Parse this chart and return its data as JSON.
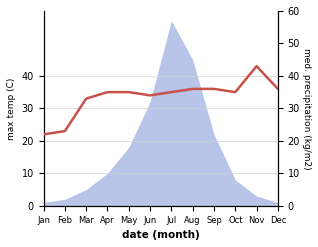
{
  "months": [
    "Jan",
    "Feb",
    "Mar",
    "Apr",
    "May",
    "Jun",
    "Jul",
    "Aug",
    "Sep",
    "Oct",
    "Nov",
    "Dec"
  ],
  "temperature": [
    22,
    23,
    33,
    35,
    35,
    34,
    35,
    36,
    36,
    35,
    43,
    36
  ],
  "precip": [
    1,
    2,
    5,
    10,
    18,
    32,
    57,
    45,
    22,
    8,
    3,
    1
  ],
  "temp_color": "#c8524a",
  "precip_fill_color": "#b8c4e8",
  "temp_ylim": [
    0,
    60
  ],
  "precip_ylim": [
    0,
    60
  ],
  "left_ylim": [
    0,
    40
  ],
  "left_yticks": [
    0,
    10,
    20,
    30,
    40
  ],
  "right_yticks": [
    0,
    10,
    20,
    30,
    40,
    50,
    60
  ],
  "xlabel": "date (month)",
  "ylabel_left": "max temp (C)",
  "ylabel_right": "med. precipitation (kg/m2)",
  "bg_color": "#ffffff",
  "grid_color": "#d0d0d0"
}
